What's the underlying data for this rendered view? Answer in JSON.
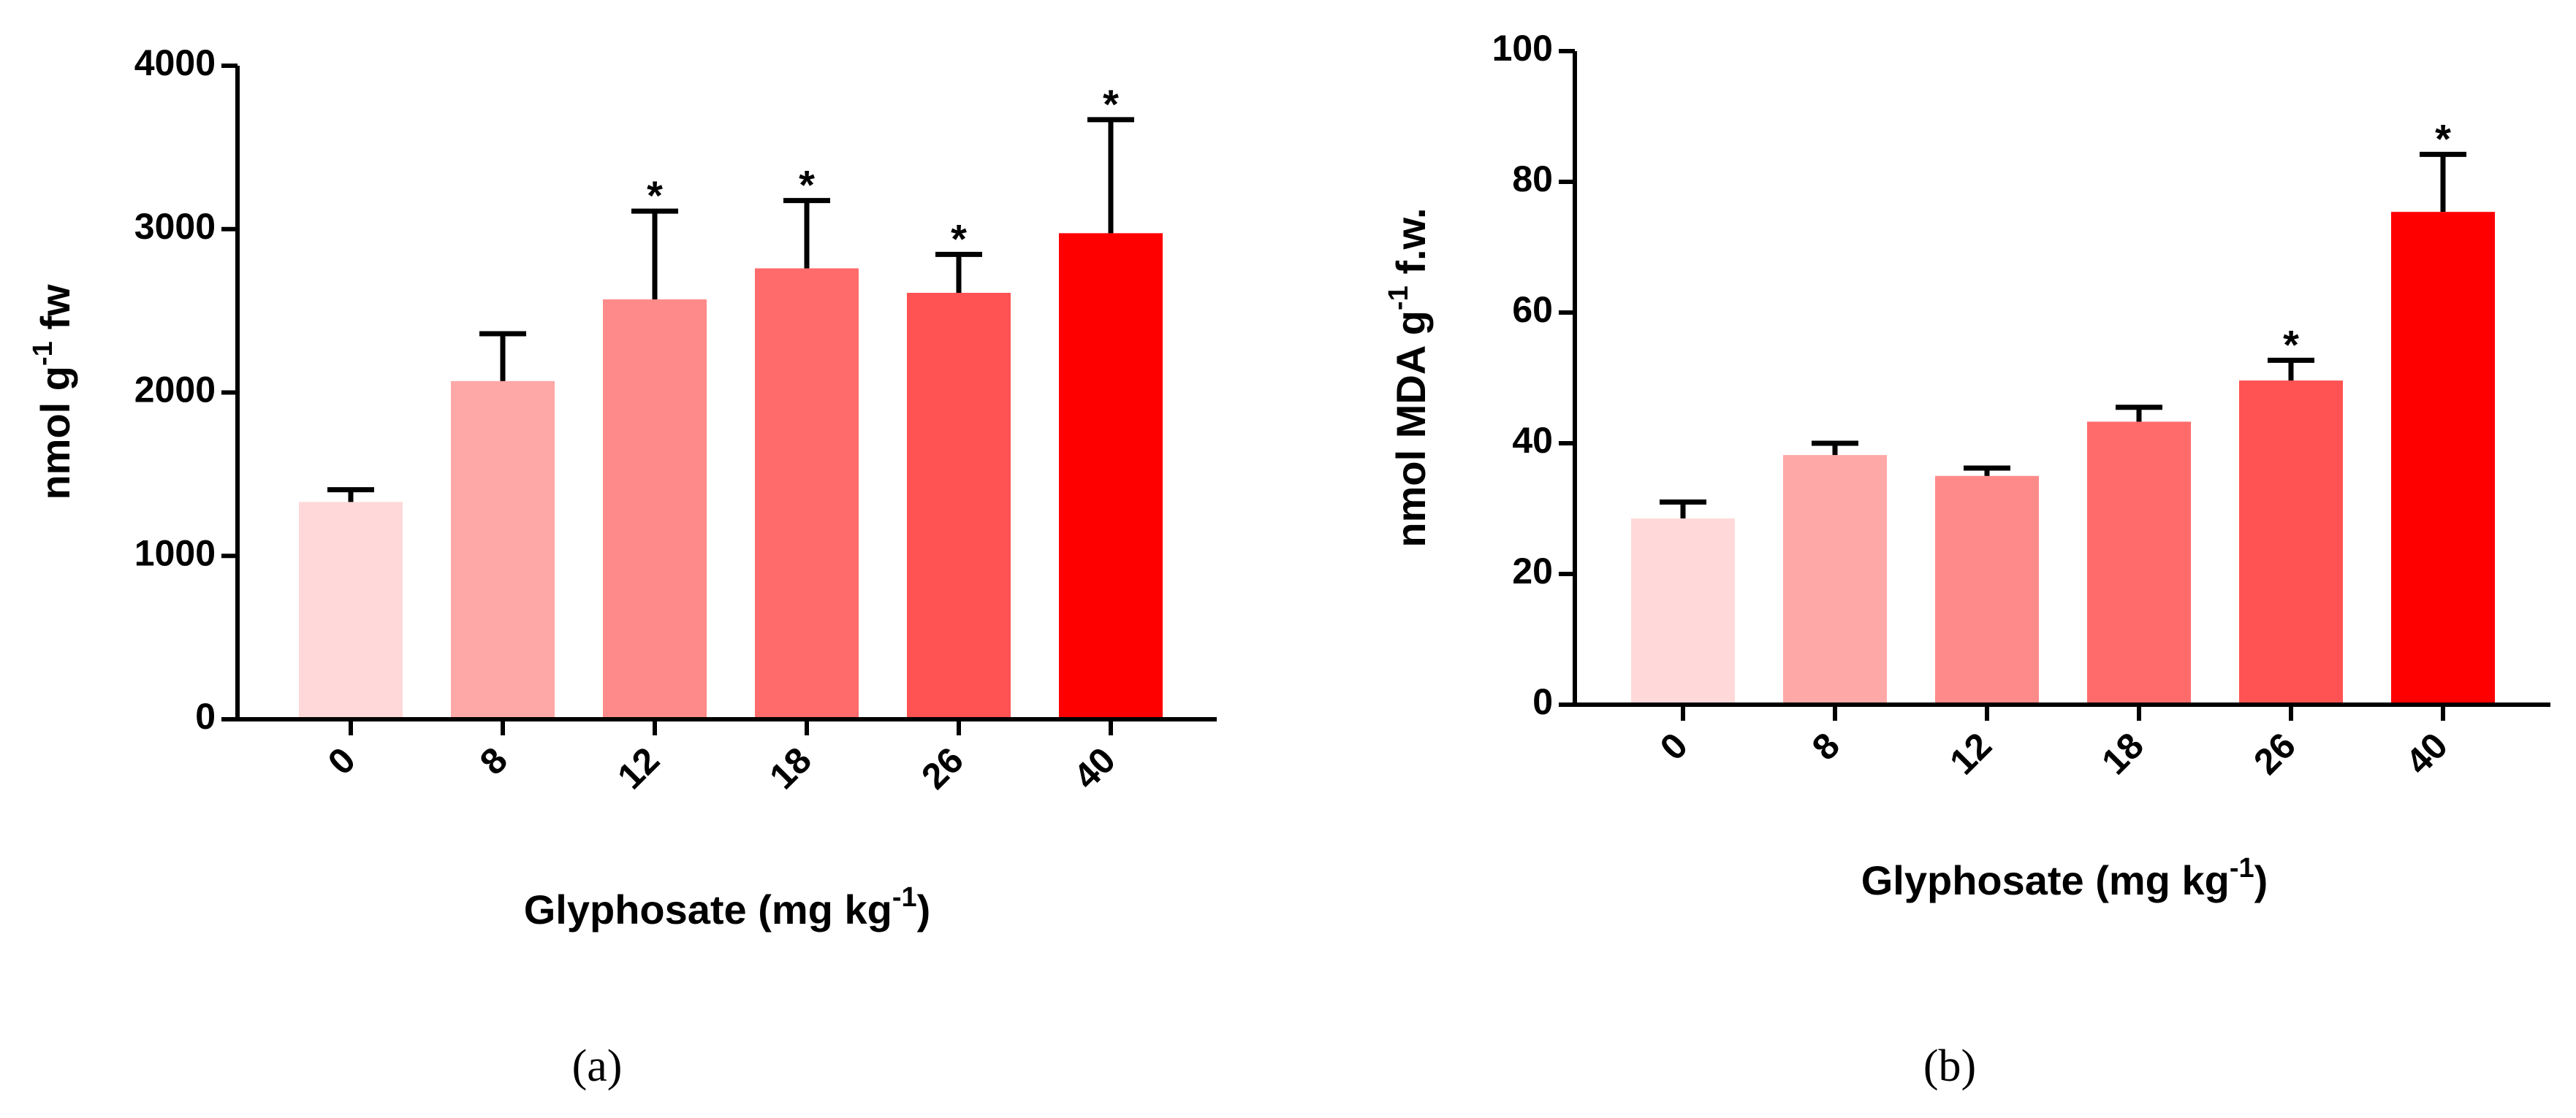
{
  "chart_data": [
    {
      "type": "bar",
      "panel": "(a)",
      "categories": [
        "0",
        "8",
        "12",
        "18",
        "26",
        "40"
      ],
      "values": [
        1330,
        2070,
        2570,
        2760,
        2610,
        2975
      ],
      "errors": [
        75,
        290,
        540,
        415,
        235,
        695
      ],
      "significant": [
        "",
        "",
        "*",
        "*",
        "*",
        "*"
      ],
      "colors": [
        "#FFD9D9",
        "#FFA8A8",
        "#FF8A8A",
        "#FF6B6B",
        "#FF5252",
        "#FF0000"
      ],
      "xlabel": "Glyphosate (mg kg",
      "xlabel_sup": "-1",
      "xlabel_end": ")",
      "ylabel": "nmol g",
      "ylabel_sup": "-1",
      "ylabel_end": " fw",
      "ylim": [
        0,
        4000
      ],
      "yticks": [
        "0",
        "1000",
        "2000",
        "3000",
        "4000"
      ],
      "grid": false
    },
    {
      "type": "bar",
      "panel": "(b)",
      "categories": [
        "0",
        "8",
        "12",
        "18",
        "26",
        "40"
      ],
      "values": [
        28.5,
        38.2,
        35.0,
        43.3,
        49.6,
        75.4
      ],
      "errors": [
        2.5,
        1.8,
        1.2,
        2.2,
        3.1,
        8.8
      ],
      "significant": [
        "",
        "",
        "",
        "",
        "*",
        "*"
      ],
      "colors": [
        "#FFD9D9",
        "#FFA8A8",
        "#FF8A8A",
        "#FF6B6B",
        "#FF5252",
        "#FF0000"
      ],
      "xlabel": "Glyphosate (mg kg",
      "xlabel_sup": "-1",
      "xlabel_end": ")",
      "ylabel": "nmol MDA g",
      "ylabel_sup": "-1",
      "ylabel_end": " f.w.",
      "ylim": [
        0,
        100
      ],
      "yticks": [
        "0",
        "20",
        "40",
        "60",
        "80",
        "100"
      ],
      "grid": false
    }
  ]
}
